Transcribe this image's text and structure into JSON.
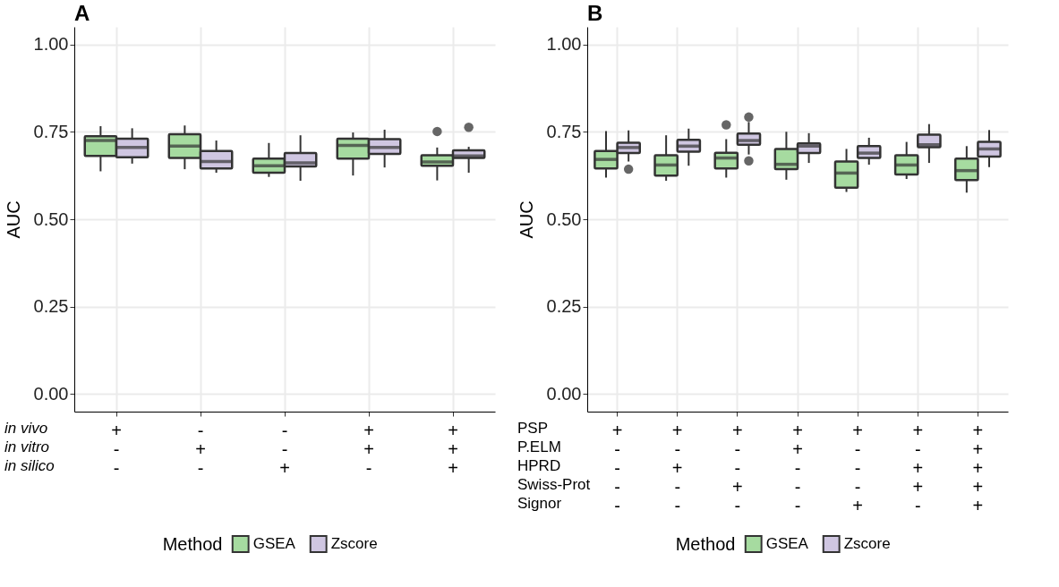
{
  "chart_data": [
    {
      "type": "box",
      "title": "A",
      "ylabel": "AUC",
      "legend_title": "Method",
      "legend": "bottom",
      "grid": true,
      "categories": [
        "+\n-\n-",
        "-\n+\n-",
        "-\n-\n+",
        "+\n+\n-",
        "+\n+\n+"
      ],
      "annotations": [
        "in vivo",
        "in vitro",
        "in silico"
      ],
      "ylim": [
        -0.05,
        1.05
      ],
      "yticks": [
        {
          "value": 0,
          "label": "0.00"
        },
        {
          "value": 0.25,
          "label": "0.25"
        },
        {
          "value": 0.5,
          "label": "0.50"
        },
        {
          "value": 0.75,
          "label": "0.75"
        },
        {
          "value": 1,
          "label": "1.00"
        }
      ],
      "series": [
        {
          "name": "GSEA",
          "color": "#a6dba0",
          "boxes": [
            {
              "low": 0.637,
              "q1": 0.681,
              "median": 0.725,
              "q3": 0.737,
              "high": 0.766
            },
            {
              "low": 0.643,
              "q1": 0.675,
              "median": 0.709,
              "q3": 0.743,
              "high": 0.768
            },
            {
              "low": 0.621,
              "q1": 0.633,
              "median": 0.653,
              "q3": 0.673,
              "high": 0.718
            },
            {
              "low": 0.625,
              "q1": 0.673,
              "median": 0.711,
              "q3": 0.73,
              "high": 0.748
            },
            {
              "low": 0.611,
              "q1": 0.653,
              "median": 0.664,
              "q3": 0.683,
              "high": 0.705,
              "outliers": [
                0.751
              ]
            }
          ]
        },
        {
          "name": "Zscore",
          "color": "#cfc6e1",
          "boxes": [
            {
              "low": 0.659,
              "q1": 0.677,
              "median": 0.705,
              "q3": 0.73,
              "high": 0.76
            },
            {
              "low": 0.633,
              "q1": 0.645,
              "median": 0.665,
              "q3": 0.695,
              "high": 0.725
            },
            {
              "low": 0.61,
              "q1": 0.651,
              "median": 0.661,
              "q3": 0.689,
              "high": 0.74
            },
            {
              "low": 0.648,
              "q1": 0.687,
              "median": 0.705,
              "q3": 0.729,
              "high": 0.756
            },
            {
              "low": 0.633,
              "q1": 0.675,
              "median": 0.681,
              "q3": 0.697,
              "high": 0.707,
              "outliers": [
                0.763
              ]
            }
          ]
        }
      ]
    },
    {
      "type": "box",
      "title": "B",
      "ylabel": "AUC",
      "legend_title": "Method",
      "legend": "bottom",
      "grid": true,
      "categories": [
        "+\n-\n-\n-\n-",
        "+\n-\n+\n-\n-",
        "+\n-\n-\n+\n-",
        "+\n+\n-\n-\n-",
        "+\n-\n-\n-\n+",
        "+\n-\n+\n+\n-",
        "+\n+\n+\n+\n+"
      ],
      "annotations": [
        "PSP",
        "P.ELM",
        "HPRD",
        "Swiss-Prot",
        "Signor"
      ],
      "ylim": [
        -0.05,
        1.05
      ],
      "yticks": [
        {
          "value": 0,
          "label": "0.00"
        },
        {
          "value": 0.25,
          "label": "0.25"
        },
        {
          "value": 0.5,
          "label": "0.50"
        },
        {
          "value": 0.75,
          "label": "0.75"
        },
        {
          "value": 1,
          "label": "1.00"
        }
      ],
      "series": [
        {
          "name": "GSEA",
          "color": "#a6dba0",
          "boxes": [
            {
              "low": 0.619,
              "q1": 0.645,
              "median": 0.671,
              "q3": 0.695,
              "high": 0.752
            },
            {
              "low": 0.61,
              "q1": 0.625,
              "median": 0.655,
              "q3": 0.683,
              "high": 0.74
            },
            {
              "low": 0.619,
              "q1": 0.645,
              "median": 0.675,
              "q3": 0.69,
              "high": 0.729,
              "outliers": [
                0.77
              ]
            },
            {
              "low": 0.613,
              "q1": 0.643,
              "median": 0.657,
              "q3": 0.701,
              "high": 0.75
            },
            {
              "low": 0.578,
              "q1": 0.59,
              "median": 0.632,
              "q3": 0.665,
              "high": 0.701
            },
            {
              "low": 0.615,
              "q1": 0.628,
              "median": 0.655,
              "q3": 0.683,
              "high": 0.721
            },
            {
              "low": 0.576,
              "q1": 0.612,
              "median": 0.639,
              "q3": 0.673,
              "high": 0.709
            }
          ]
        },
        {
          "name": "Zscore",
          "color": "#cfc6e1",
          "boxes": [
            {
              "low": 0.665,
              "q1": 0.689,
              "median": 0.705,
              "q3": 0.719,
              "high": 0.754,
              "outliers": [
                0.643
              ]
            },
            {
              "low": 0.653,
              "q1": 0.693,
              "median": 0.709,
              "q3": 0.727,
              "high": 0.759
            },
            {
              "low": 0.685,
              "q1": 0.713,
              "median": 0.725,
              "q3": 0.745,
              "high": 0.778,
              "outliers": [
                0.792,
                0.667
              ]
            },
            {
              "low": 0.661,
              "q1": 0.689,
              "median": 0.709,
              "q3": 0.717,
              "high": 0.746
            },
            {
              "low": 0.656,
              "q1": 0.675,
              "median": 0.689,
              "q3": 0.709,
              "high": 0.733
            },
            {
              "low": 0.661,
              "q1": 0.706,
              "median": 0.713,
              "q3": 0.742,
              "high": 0.772
            },
            {
              "low": 0.649,
              "q1": 0.679,
              "median": 0.701,
              "q3": 0.721,
              "high": 0.755
            }
          ]
        }
      ]
    }
  ]
}
